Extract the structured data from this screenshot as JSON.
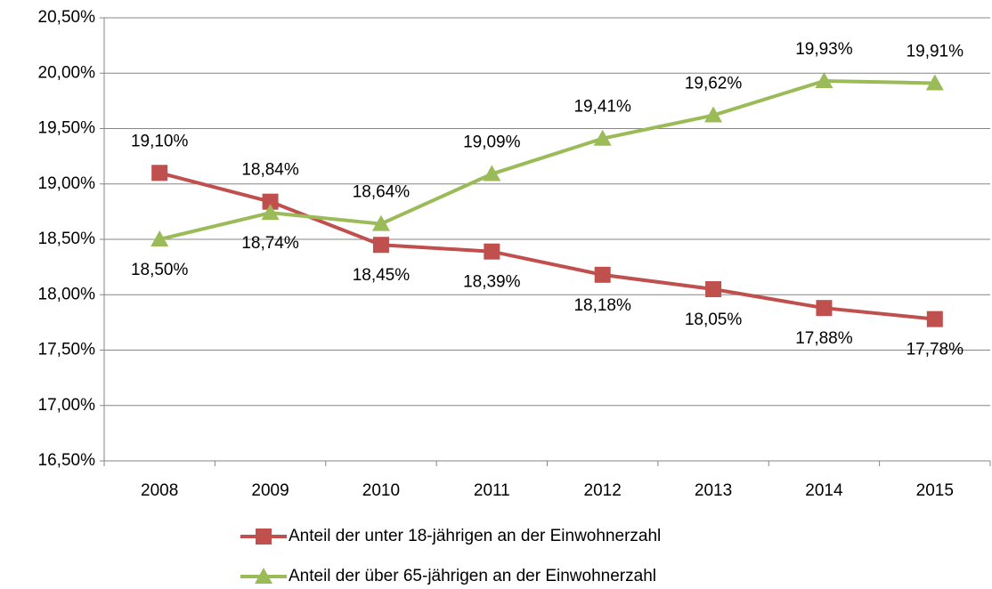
{
  "chart_data": {
    "type": "line",
    "categories": [
      "2008",
      "2009",
      "2010",
      "2011",
      "2012",
      "2013",
      "2014",
      "2015"
    ],
    "series": [
      {
        "name": "Anteil der unter 18-jährigen an der Einwohnerzahl",
        "color": "#c0504d",
        "marker": "square",
        "values": [
          19.1,
          18.84,
          18.45,
          18.39,
          18.18,
          18.05,
          17.88,
          17.78
        ],
        "value_labels": [
          "19,10%",
          "18,84%",
          "18,45%",
          "18,39%",
          "18,18%",
          "18,05%",
          "17,88%",
          "17,78%"
        ]
      },
      {
        "name": "Anteil der über 65-jährigen an der Einwohnerzahl",
        "color": "#9bbb59",
        "marker": "triangle",
        "values": [
          18.5,
          18.74,
          18.64,
          19.09,
          19.41,
          19.62,
          19.93,
          19.91
        ],
        "value_labels": [
          "18,50%",
          "18,74%",
          "18,64%",
          "19,09%",
          "19,41%",
          "19,62%",
          "19,93%",
          "19,91%"
        ]
      }
    ],
    "ylim": [
      16.5,
      20.5
    ],
    "yticks": [
      {
        "value": 16.5,
        "label": "16,50%"
      },
      {
        "value": 17,
        "label": "17,00%"
      },
      {
        "value": 17.5,
        "label": "17,50%"
      },
      {
        "value": 18,
        "label": "18,00%"
      },
      {
        "value": 18.5,
        "label": "18,50%"
      },
      {
        "value": 19,
        "label": "19,00%"
      },
      {
        "value": 19.5,
        "label": "19,50%"
      },
      {
        "value": 20,
        "label": "20,00%"
      },
      {
        "value": 20.5,
        "label": "20,50%"
      }
    ],
    "grid": true,
    "legend": "bottom"
  }
}
